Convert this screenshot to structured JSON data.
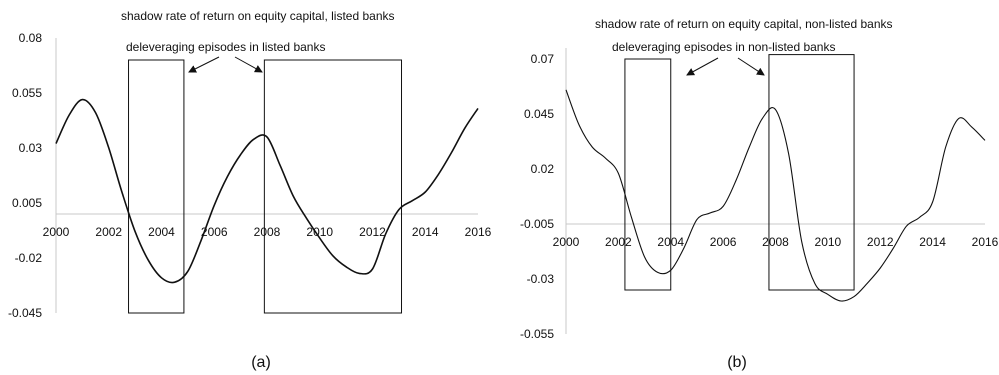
{
  "chart_data": [
    {
      "type": "line",
      "panel_label": "(a)",
      "x_ticks": [
        "2000",
        "2002",
        "2004",
        "2006",
        "2008",
        "2010",
        "2012",
        "2014",
        "2016"
      ],
      "y_ticks": [
        "0.08",
        "0.055",
        "0.03",
        "0.005",
        "-0.02",
        "-0.045"
      ],
      "ylim": [
        -0.045,
        0.08
      ],
      "xlim": [
        2000,
        2016
      ],
      "x_axis_at": 0,
      "series": [
        {
          "x": [
            2000.0,
            2000.5,
            2001.0,
            2001.5,
            2002.0,
            2002.5,
            2003.0,
            2003.5,
            2004.0,
            2004.5,
            2005.0,
            2005.5,
            2006.0,
            2006.5,
            2007.0,
            2007.5,
            2008.0,
            2008.5,
            2009.0,
            2009.5,
            2010.0,
            2010.5,
            2011.0,
            2011.5,
            2012.0,
            2012.5,
            2013.0,
            2013.5,
            2014.0,
            2014.5,
            2015.0,
            2015.5,
            2016.0
          ],
          "values": [
            0.032,
            0.045,
            0.052,
            0.046,
            0.03,
            0.01,
            -0.008,
            -0.021,
            -0.029,
            -0.031,
            -0.026,
            -0.012,
            0.004,
            0.017,
            0.027,
            0.034,
            0.035,
            0.022,
            0.008,
            -0.002,
            -0.011,
            -0.019,
            -0.024,
            -0.027,
            -0.025,
            -0.009,
            0.002,
            0.006,
            0.01,
            0.018,
            0.028,
            0.039,
            0.048
          ]
        }
      ],
      "shaded_periods": [
        [
          2002.75,
          2004.85
        ],
        [
          2007.9,
          2013.1
        ]
      ],
      "box_top": 0.07,
      "annotations": [
        "shadow rate of return on equity capital, listed banks",
        "deleveraging episodes in listed banks"
      ]
    },
    {
      "type": "line",
      "panel_label": "(b)",
      "x_ticks": [
        "2000",
        "2002",
        "2004",
        "2006",
        "2008",
        "2010",
        "2012",
        "2014",
        "2016"
      ],
      "y_ticks": [
        "0.07",
        "0.045",
        "0.02",
        "-0.005",
        "-0.03",
        "-0.055"
      ],
      "ylim": [
        -0.055,
        0.08
      ],
      "xlim": [
        2000,
        2016
      ],
      "x_axis_at": -0.005,
      "series": [
        {
          "x": [
            2000.0,
            2000.5,
            2001.0,
            2001.5,
            2002.0,
            2002.5,
            2003.0,
            2003.5,
            2004.0,
            2004.5,
            2005.0,
            2005.5,
            2006.0,
            2006.5,
            2007.0,
            2007.5,
            2008.0,
            2008.5,
            2009.0,
            2009.5,
            2010.0,
            2010.5,
            2011.0,
            2011.5,
            2012.0,
            2012.5,
            2013.0,
            2013.5,
            2014.0,
            2014.5,
            2015.0,
            2015.5,
            2016.0
          ],
          "values": [
            0.056,
            0.04,
            0.03,
            0.025,
            0.018,
            -0.002,
            -0.02,
            -0.027,
            -0.026,
            -0.016,
            -0.003,
            0.0,
            0.003,
            0.015,
            0.03,
            0.043,
            0.047,
            0.027,
            -0.013,
            -0.032,
            -0.037,
            -0.04,
            -0.038,
            -0.032,
            -0.025,
            -0.016,
            -0.006,
            -0.002,
            0.005,
            0.03,
            0.043,
            0.039,
            0.033
          ]
        }
      ],
      "shaded_periods": [
        [
          2002.25,
          2004.0
        ],
        [
          2007.75,
          2011.0
        ]
      ],
      "box_tops": [
        0.07,
        0.072
      ],
      "box_bottom": -0.035,
      "annotations": [
        "shadow rate of return on equity capital, non-listed banks",
        "deleveraging episodes in non-listed banks"
      ]
    }
  ]
}
